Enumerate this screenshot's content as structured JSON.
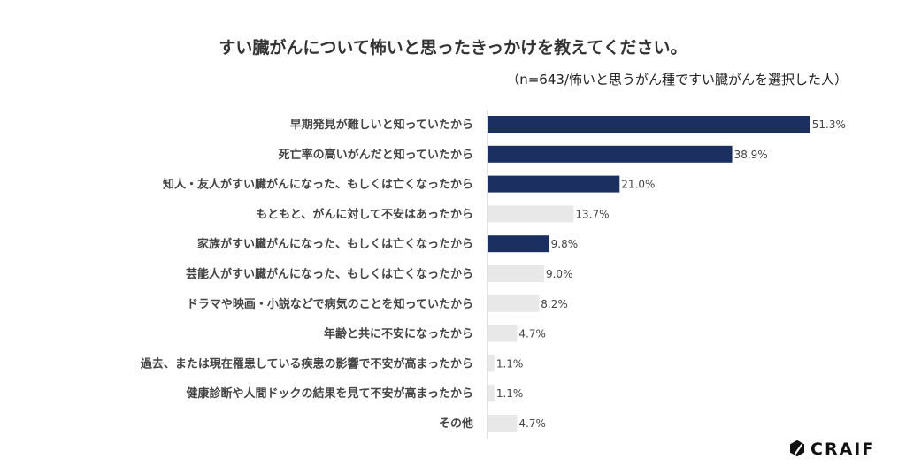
{
  "chart_data": {
    "type": "bar",
    "orientation": "horizontal",
    "title": "すい臓がんについて怖いと思ったきっかけを教えてください。",
    "subtitle": "（n=643/怖いと思うがん種ですい臓がんを選択した人）",
    "categories": [
      "早期発見が難しいと知っていたから",
      "死亡率の高いがんだと知っていたから",
      "知人・友人がすい臓がんになった、もしくは亡くなったから",
      "もともと、がんに対して不安はあったから",
      "家族がすい臓がんになった、もしくは亡くなったから",
      "芸能人がすい臓がんになった、もしくは亡くなったから",
      "ドラマや映画・小説などで病気のことを知っていたから",
      "年齢と共に不安になったから",
      "過去、または現在罹患している疾患の影響で不安が高まったから",
      "健康診断や人間ドックの結果を見て不安が高まったから",
      "その他"
    ],
    "values": [
      51.3,
      38.9,
      21.0,
      13.7,
      9.8,
      9.0,
      8.2,
      4.7,
      1.1,
      1.1,
      4.7
    ],
    "value_labels": [
      "51.3%",
      "38.9%",
      "21.0%",
      "13.7%",
      "9.8%",
      "9.0%",
      "8.2%",
      "4.7%",
      "1.1%",
      "1.1%",
      "4.7%"
    ],
    "highlighted": [
      true,
      true,
      true,
      false,
      true,
      false,
      false,
      false,
      false,
      false,
      false
    ],
    "unit": "%",
    "xlim": [
      0,
      55
    ],
    "grid": false,
    "colors": {
      "highlight": "#1b2f60",
      "normal": "#e8e8e8",
      "axis": "#e0e0e0"
    }
  },
  "brand": {
    "logo_text": "CRAIF"
  }
}
